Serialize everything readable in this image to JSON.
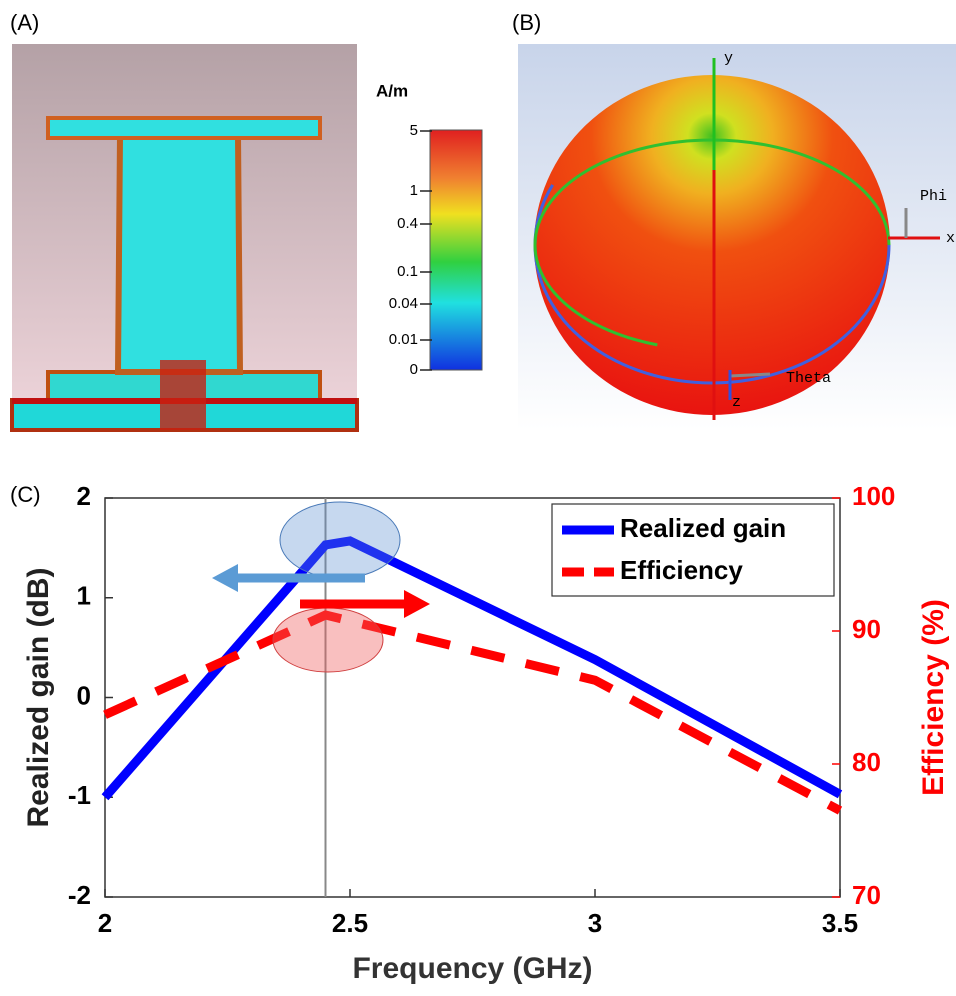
{
  "panel_a": {
    "label": "(A)",
    "unit": "A/m",
    "colorbar_ticks": [
      5,
      1,
      0.4,
      0.1,
      0.04,
      0.01,
      0
    ]
  },
  "panel_b": {
    "label": "(B)",
    "axis_labels": [
      "y",
      "Phi",
      "x",
      "Theta",
      "z"
    ]
  },
  "chart_data": {
    "type": "line",
    "label": "(C)",
    "x_label": "Frequency (GHz)",
    "y_label": "Realized gain (dB)",
    "y2_label": "Efficiency (%)",
    "xlim": [
      2,
      3.5
    ],
    "xticks": [
      2,
      2.5,
      3,
      3.5
    ],
    "ylim": [
      -2,
      2
    ],
    "yticks": [
      -2,
      -1,
      0,
      1,
      2
    ],
    "y2lim": [
      70,
      100
    ],
    "y2ticks": [
      70,
      80,
      90,
      100
    ],
    "vline": 2.45,
    "legend": "upper right",
    "series": [
      {
        "name": "Realized gain",
        "color": "#0000ff",
        "style": "solid",
        "x": [
          2,
          2.45,
          2.5,
          3,
          3.5
        ],
        "values": [
          -1,
          1.53,
          1.57,
          0.38,
          -0.97
        ]
      },
      {
        "name": "Efficiency",
        "color": "#ff0000",
        "style": "dashed",
        "axis": "y2",
        "x": [
          2,
          2.45,
          3,
          3.5
        ],
        "values": [
          83.7,
          91.2,
          86.3,
          76.5
        ]
      }
    ]
  }
}
